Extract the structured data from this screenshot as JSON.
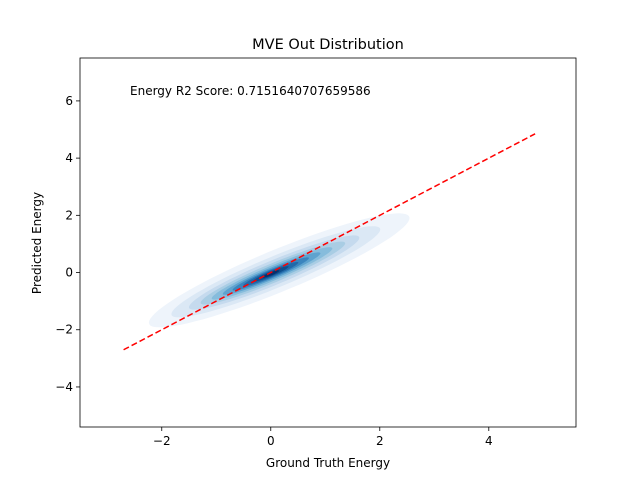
{
  "chart_data": {
    "type": "kde-density",
    "title": "MVE Out Distribution",
    "xlabel": "Ground Truth Energy",
    "ylabel": "Predicted Energy",
    "xlim": [
      -3.5,
      5.6
    ],
    "ylim": [
      -5.4,
      7.5
    ],
    "xticks": [
      -2,
      0,
      2,
      4
    ],
    "yticks": [
      -4,
      -2,
      0,
      2,
      4,
      6
    ],
    "xtick_labels": [
      "−2",
      "0",
      "2",
      "4"
    ],
    "ytick_labels": [
      "−4",
      "−2",
      "0",
      "2",
      "4",
      "6"
    ],
    "annotation": "Energy R2 Score: 0.7151640707659586",
    "reference_line": {
      "style": "dashed",
      "color": "#ff0000",
      "x": [
        -2.7,
        4.85
      ],
      "y": [
        -2.7,
        4.85
      ]
    },
    "density": {
      "center": [
        0.0,
        -0.05
      ],
      "direction_slope": 0.82,
      "colormap": "Blues",
      "levels": [
        {
          "level": 0.05,
          "color": "#eef4fb",
          "half_length": 3.05,
          "half_width": 0.62,
          "shift": 0.2
        },
        {
          "level": 0.15,
          "color": "#dbe8f5",
          "half_length": 2.45,
          "half_width": 0.46,
          "shift": 0.12
        },
        {
          "level": 0.25,
          "color": "#c5daee",
          "half_length": 2.0,
          "half_width": 0.36,
          "shift": 0.08
        },
        {
          "level": 0.35,
          "color": "#a9cde4",
          "half_length": 1.7,
          "half_width": 0.28,
          "shift": 0.05
        },
        {
          "level": 0.45,
          "color": "#86bcdc",
          "half_length": 1.42,
          "half_width": 0.22,
          "shift": 0.03
        },
        {
          "level": 0.55,
          "color": "#5ea3cf",
          "half_length": 1.15,
          "half_width": 0.17,
          "shift": 0.02
        },
        {
          "level": 0.65,
          "color": "#3a85be",
          "half_length": 0.9,
          "half_width": 0.13,
          "shift": 0.0
        },
        {
          "level": 0.75,
          "color": "#2169a9",
          "half_length": 0.65,
          "half_width": 0.1,
          "shift": 0.0
        },
        {
          "level": 0.85,
          "color": "#0d4f8e",
          "half_length": 0.42,
          "half_width": 0.07,
          "shift": 0.0
        },
        {
          "level": 0.95,
          "color": "#08306b",
          "half_length": 0.2,
          "half_width": 0.045,
          "shift": 0.0
        }
      ]
    }
  }
}
